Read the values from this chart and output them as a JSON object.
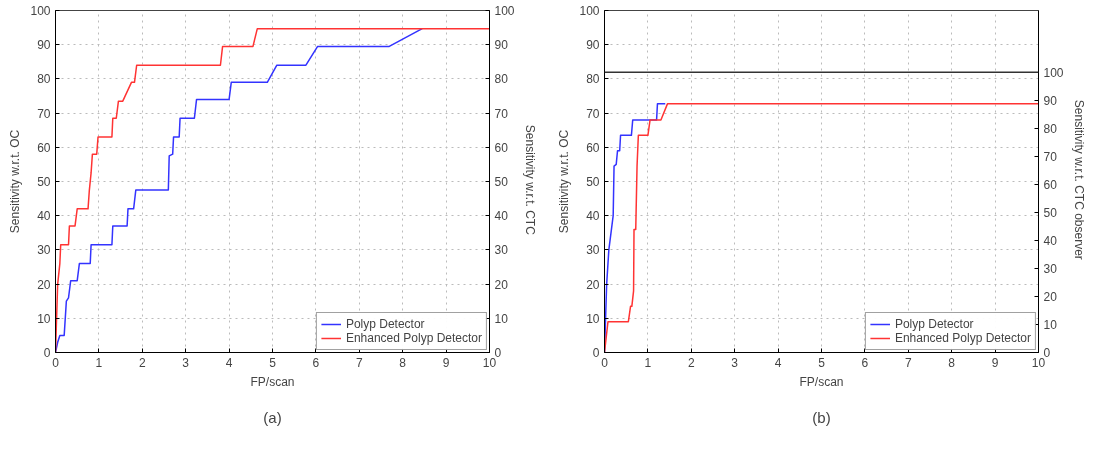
{
  "chart_data": [
    {
      "type": "line",
      "xlabel": "FP/scan",
      "ylabel": "Sensitivity w.r.t. OC",
      "y2label": "Sensitivity w.r.t.  CTC",
      "xlim": [
        0,
        10
      ],
      "ylim": [
        0,
        100
      ],
      "y2lim": [
        0,
        100
      ],
      "xticks": [
        0,
        1,
        2,
        3,
        4,
        5,
        6,
        7,
        8,
        9,
        10
      ],
      "yticks": [
        0,
        10,
        20,
        30,
        40,
        50,
        60,
        70,
        80,
        90,
        100
      ],
      "y2ticks": [
        0,
        10,
        20,
        30,
        40,
        50,
        60,
        70,
        80,
        90,
        100
      ],
      "grid": true,
      "legend": "bottom right",
      "line_style": "solid",
      "marker": "none",
      "annotations": [
        "(a)"
      ],
      "series": [
        {
          "name": "Polyp Detector",
          "color": "#3333ff",
          "x": [
            0,
            0.05,
            0.1,
            0.2,
            0.25,
            0.3,
            0.35,
            0.5,
            0.55,
            0.8,
            0.82,
            1.3,
            1.32,
            1.65,
            1.67,
            1.8,
            1.85,
            2.6,
            2.62,
            2.7,
            2.72,
            2.85,
            2.87,
            3.2,
            3.25,
            4.0,
            4.05,
            4.88,
            5.1,
            5.77,
            6.04,
            7.69,
            8.45
          ],
          "values": [
            0,
            3,
            5,
            5,
            15,
            16,
            21,
            21,
            26,
            26,
            31.5,
            31.5,
            37,
            37,
            42,
            42,
            47.5,
            47.5,
            57.5,
            58,
            63,
            63,
            68.5,
            68.5,
            74,
            74,
            79,
            79,
            84,
            84,
            89.5,
            89.5,
            94.7
          ]
        },
        {
          "name": "Enhanced Polyp Detector",
          "color": "#ff3333",
          "x": [
            0,
            0.05,
            0.1,
            0.12,
            0.3,
            0.32,
            0.45,
            0.5,
            0.75,
            0.78,
            0.82,
            0.85,
            0.95,
            0.98,
            1.3,
            1.32,
            1.4,
            1.45,
            1.55,
            1.75,
            1.82,
            1.87,
            3.8,
            3.85,
            4.55,
            4.65,
            10
          ],
          "values": [
            0,
            20,
            26,
            31.5,
            31.5,
            37,
            37,
            42,
            42,
            47.5,
            52.5,
            58,
            58,
            63,
            63,
            68.5,
            68.5,
            73.5,
            73.5,
            79,
            79,
            84,
            84,
            89.5,
            89.5,
            94.7,
            94.7
          ]
        }
      ]
    },
    {
      "type": "line",
      "xlabel": "FP/scan",
      "ylabel": "Sensitivity w.r.t. OC",
      "y2label": "Sensitivity w.r.t.  CTC observer",
      "xlim": [
        0,
        10
      ],
      "ylim": [
        0,
        100
      ],
      "y2lim": [
        0,
        122
      ],
      "xticks": [
        0,
        1,
        2,
        3,
        4,
        5,
        6,
        7,
        8,
        9,
        10
      ],
      "yticks": [
        0,
        10,
        20,
        30,
        40,
        50,
        60,
        70,
        80,
        90,
        100
      ],
      "y2ticks": [
        0,
        10,
        20,
        30,
        40,
        50,
        60,
        70,
        80,
        90,
        100
      ],
      "grid": true,
      "legend": "bottom right",
      "line_style": "solid",
      "marker": "none",
      "ref_lines": [
        {
          "axis": "y2",
          "value": 100,
          "label": null,
          "color": "#333333"
        }
      ],
      "annotations": [
        "(b)"
      ],
      "series": [
        {
          "name": "Polyp Detector",
          "color": "#3333ff",
          "x": [
            0,
            0.05,
            0.1,
            0.2,
            0.22,
            0.27,
            0.3,
            0.35,
            0.37,
            0.62,
            0.65,
            1.2,
            1.22,
            1.4
          ],
          "values": [
            0,
            20,
            30,
            40,
            54.5,
            55,
            59,
            59,
            63.5,
            63.5,
            68,
            68,
            72.7,
            72.7
          ]
        },
        {
          "name": "Enhanced Polyp Detector",
          "color": "#ff3333",
          "x": [
            0,
            0.08,
            0.55,
            0.6,
            0.63,
            0.67,
            0.68,
            0.72,
            0.75,
            0.78,
            1.0,
            1.05,
            1.3,
            1.45,
            10
          ],
          "values": [
            0,
            9,
            9,
            13.5,
            13.5,
            18,
            36,
            36,
            54.5,
            63.5,
            63.5,
            68,
            68,
            72.7,
            72.7
          ]
        }
      ]
    }
  ]
}
